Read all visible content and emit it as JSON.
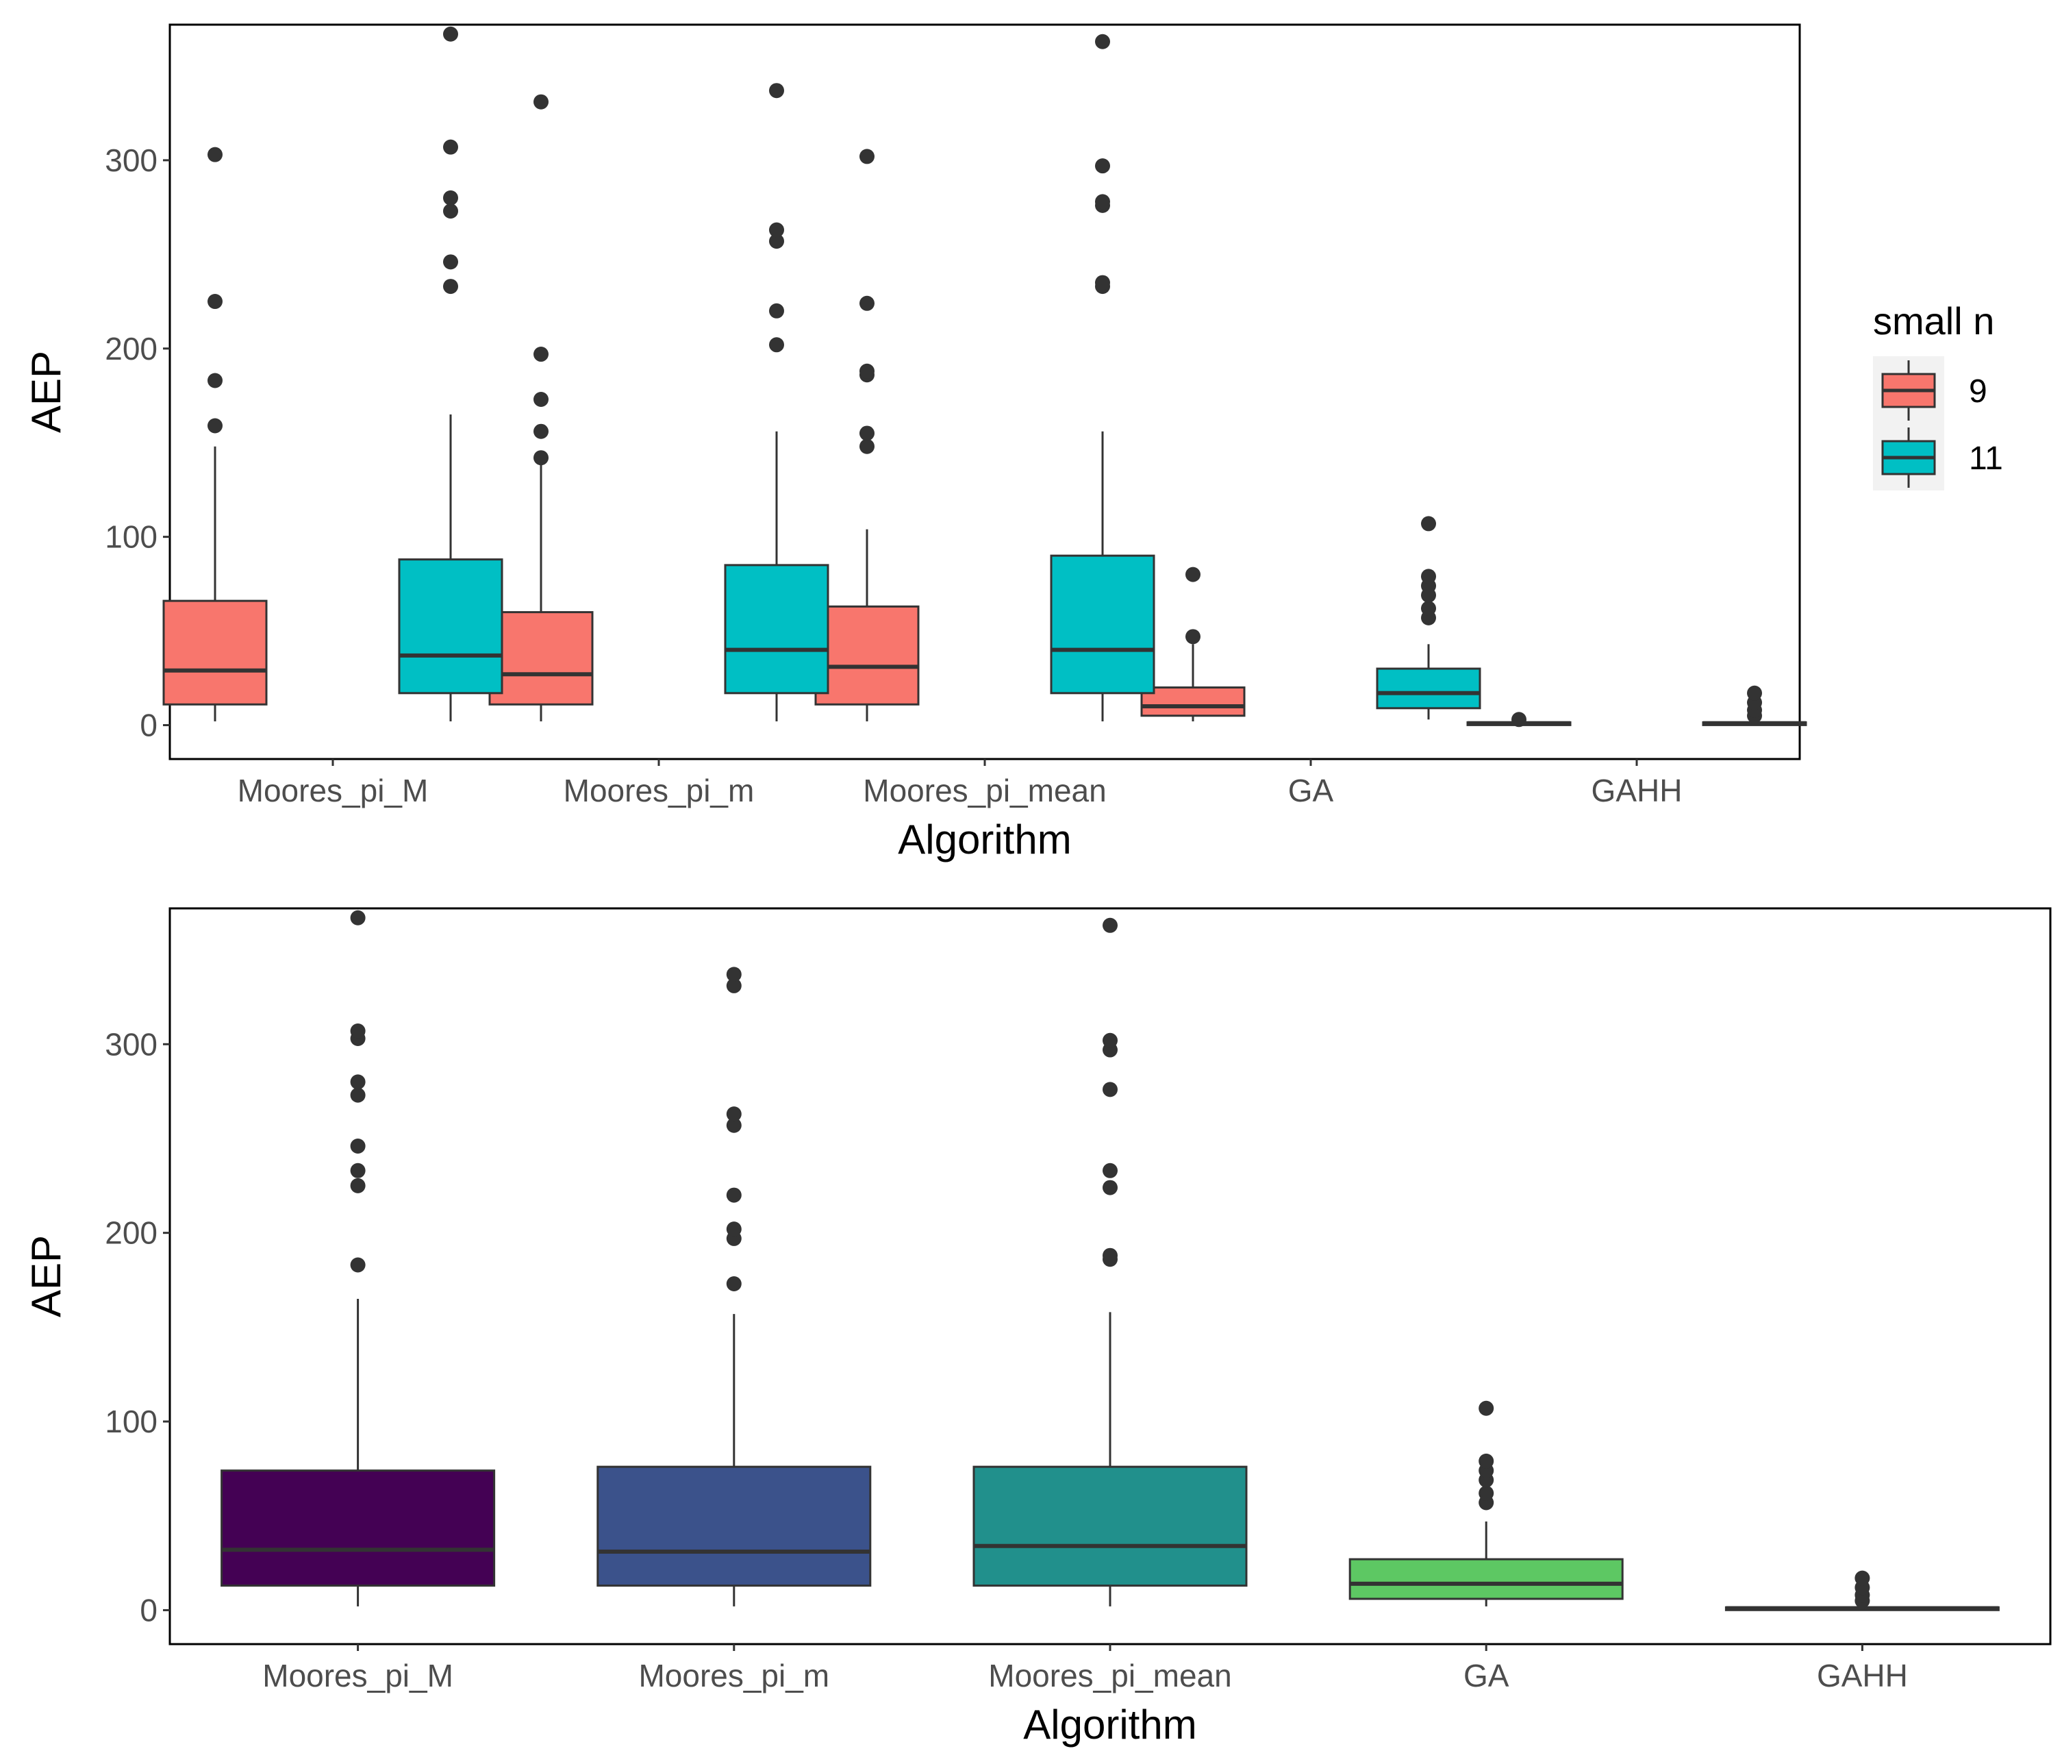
{
  "chart_data": [
    {
      "type": "boxplot",
      "title": "",
      "xlabel": "Algorithm",
      "ylabel": "AEP",
      "ylim": [
        -18,
        372
      ],
      "y_ticks": [
        0,
        100,
        200,
        300
      ],
      "categories": [
        "Moores_pi_M",
        "Moores_pi_m",
        "Moores_pi_mean",
        "GA",
        "GAHH"
      ],
      "legend": {
        "title": "small n",
        "position": "right",
        "entries": [
          {
            "label": "9",
            "color": "#F8766D"
          },
          {
            "label": "11",
            "color": "#00BFC4"
          }
        ]
      },
      "series": [
        {
          "name": "9",
          "color": "#F8766D",
          "boxes": [
            {
              "category": "Moores_pi_M",
              "min": 2,
              "q1": 11,
              "median": 29,
              "q3": 66,
              "max": 148,
              "outliers": [
                159,
                183,
                225,
                303
              ]
            },
            {
              "category": "Moores_pi_m",
              "min": 2,
              "q1": 11,
              "median": 27,
              "q3": 60,
              "max": 140,
              "outliers": [
                142,
                156,
                173,
                197,
                331
              ]
            },
            {
              "category": "Moores_pi_mean",
              "min": 2,
              "q1": 11,
              "median": 31,
              "q3": 63,
              "max": 104,
              "outliers": [
                148,
                155,
                186,
                188,
                224,
                302
              ]
            },
            {
              "category": "GA",
              "min": 2,
              "q1": 5,
              "median": 10,
              "q3": 20,
              "max": 43,
              "outliers": [
                47,
                80
              ]
            },
            {
              "category": "GAHH",
              "min": 0,
              "q1": 0.5,
              "median": 1,
              "q3": 1.5,
              "max": 2,
              "outliers": [
                3
              ]
            }
          ]
        },
        {
          "name": "11",
          "color": "#00BFC4",
          "boxes": [
            {
              "category": "Moores_pi_M",
              "min": 2,
              "q1": 17,
              "median": 37,
              "q3": 88,
              "max": 165,
              "outliers": [
                233,
                246,
                273,
                280,
                307,
                367
              ]
            },
            {
              "category": "Moores_pi_m",
              "min": 2,
              "q1": 17,
              "median": 40,
              "q3": 85,
              "max": 156,
              "outliers": [
                202,
                220,
                257,
                263,
                337
              ]
            },
            {
              "category": "Moores_pi_mean",
              "min": 2,
              "q1": 17,
              "median": 40,
              "q3": 90,
              "max": 156,
              "outliers": [
                233,
                235,
                276,
                278,
                297,
                363
              ]
            },
            {
              "category": "GA",
              "min": 3,
              "q1": 9,
              "median": 17,
              "q3": 30,
              "max": 43,
              "outliers": [
                57,
                62,
                69,
                74,
                79,
                107
              ]
            },
            {
              "category": "GAHH",
              "min": 0,
              "q1": 0.5,
              "median": 1,
              "q3": 1.5,
              "max": 3,
              "outliers": [
                5,
                8,
                12,
                17
              ]
            }
          ]
        }
      ]
    },
    {
      "type": "boxplot",
      "title": "",
      "xlabel": "Algorithm",
      "ylabel": "AEP",
      "ylim": [
        -18,
        372
      ],
      "y_ticks": [
        0,
        100,
        200,
        300
      ],
      "categories": [
        "Moores_pi_M",
        "Moores_pi_m",
        "Moores_pi_mean",
        "GA",
        "GAHH"
      ],
      "boxes": [
        {
          "category": "Moores_pi_M",
          "color": "#440154",
          "min": 2,
          "q1": 13,
          "median": 32,
          "q3": 74,
          "max": 165,
          "outliers": [
            183,
            225,
            233,
            246,
            273,
            280,
            303,
            307,
            367
          ]
        },
        {
          "category": "Moores_pi_m",
          "color": "#3B528B",
          "min": 2,
          "q1": 13,
          "median": 31,
          "q3": 76,
          "max": 157,
          "outliers": [
            173,
            197,
            202,
            220,
            257,
            263,
            331,
            337
          ]
        },
        {
          "category": "Moores_pi_mean",
          "color": "#21908C",
          "min": 2,
          "q1": 13,
          "median": 34,
          "q3": 76,
          "max": 158,
          "outliers": [
            186,
            188,
            224,
            233,
            276,
            297,
            302,
            363
          ]
        },
        {
          "category": "GA",
          "color": "#5DC863",
          "min": 2,
          "q1": 6,
          "median": 14,
          "q3": 27,
          "max": 47,
          "outliers": [
            57,
            62,
            69,
            74,
            79,
            107
          ]
        },
        {
          "category": "GAHH",
          "color": "#FDE725",
          "min": 0,
          "q1": 0.5,
          "median": 1,
          "q3": 1.5,
          "max": 3,
          "outliers": [
            5,
            8,
            12,
            17
          ]
        }
      ]
    }
  ]
}
